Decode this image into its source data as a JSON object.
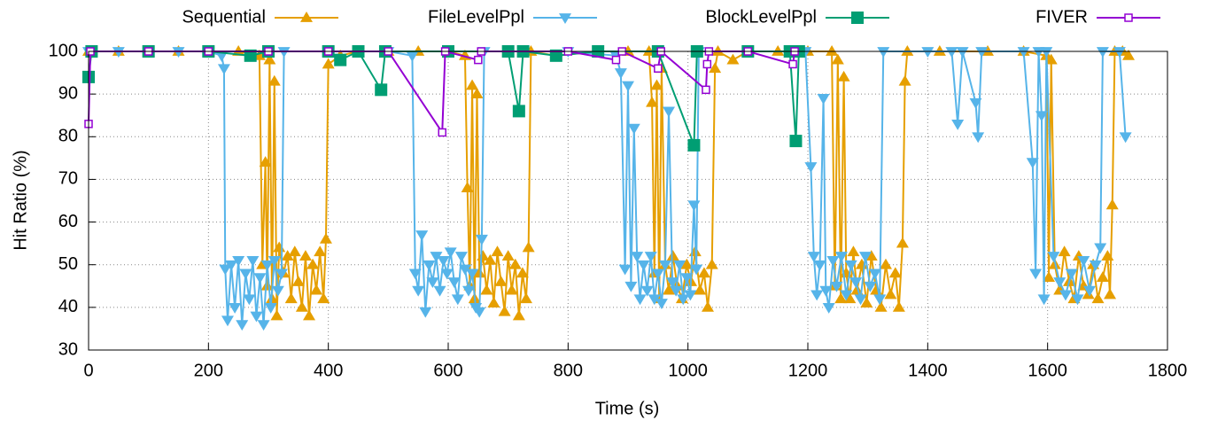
{
  "chart_data": {
    "type": "line",
    "xlabel": "Time (s)",
    "ylabel": "Hit Ratio (%)",
    "xlim": [
      0,
      1800
    ],
    "ylim": [
      30,
      100
    ],
    "xticks": [
      0,
      200,
      400,
      600,
      800,
      1000,
      1200,
      1400,
      1600,
      1800
    ],
    "yticks": [
      30,
      40,
      50,
      60,
      70,
      80,
      90,
      100
    ],
    "grid": true,
    "legend": "top",
    "series": [
      {
        "name": "Sequential",
        "color": "#E69F00",
        "marker": "triangle-up",
        "x": [
          0,
          50,
          100,
          150,
          200,
          250,
          285,
          290,
          295,
          298,
          302,
          306,
          310,
          314,
          318,
          325,
          332,
          338,
          344,
          350,
          356,
          362,
          368,
          374,
          380,
          386,
          392,
          396,
          400,
          420,
          450,
          500,
          550,
          600,
          628,
          632,
          636,
          640,
          644,
          648,
          652,
          658,
          664,
          670,
          676,
          682,
          688,
          694,
          700,
          706,
          712,
          718,
          724,
          730,
          734,
          738,
          780,
          850,
          900,
          935,
          940,
          944,
          948,
          952,
          956,
          962,
          968,
          975,
          982,
          990,
          998,
          1005,
          1012,
          1020,
          1027,
          1033,
          1040,
          1045,
          1050,
          1075,
          1100,
          1150,
          1200,
          1240,
          1245,
          1250,
          1255,
          1260,
          1264,
          1270,
          1276,
          1282,
          1290,
          1298,
          1306,
          1314,
          1322,
          1330,
          1338,
          1346,
          1352,
          1358,
          1362,
          1366,
          1420,
          1500,
          1560,
          1598,
          1602,
          1606,
          1612,
          1620,
          1628,
          1636,
          1644,
          1652,
          1660,
          1668,
          1676,
          1684,
          1692,
          1700,
          1704,
          1708,
          1712,
          1725,
          1735
        ],
        "values": [
          100,
          100,
          100,
          100,
          100,
          100,
          99,
          50,
          74,
          45,
          98,
          42,
          93,
          38,
          54,
          48,
          52,
          42,
          53,
          46,
          40,
          52,
          38,
          50,
          44,
          53,
          42,
          56,
          97,
          99,
          100,
          100,
          100,
          100,
          99,
          68,
          45,
          92,
          42,
          90,
          48,
          52,
          44,
          51,
          41,
          53,
          46,
          39,
          52,
          44,
          50,
          38,
          48,
          42,
          54,
          100,
          99,
          100,
          100,
          100,
          88,
          48,
          92,
          42,
          96,
          50,
          44,
          52,
          45,
          42,
          50,
          46,
          53,
          44,
          48,
          40,
          50,
          96,
          100,
          98,
          100,
          100,
          100,
          100,
          45,
          98,
          42,
          94,
          48,
          42,
          53,
          44,
          50,
          41,
          52,
          44,
          40,
          50,
          43,
          48,
          40,
          55,
          93,
          100,
          100,
          100,
          100,
          99,
          47,
          98,
          50,
          44,
          53,
          46,
          42,
          52,
          45,
          43,
          50,
          42,
          47,
          52,
          43,
          64,
          100,
          100,
          99
        ]
      },
      {
        "name": "FileLevelPpl",
        "color": "#56B4E9",
        "marker": "triangle-down",
        "x": [
          0,
          50,
          100,
          150,
          200,
          222,
          226,
          228,
          232,
          238,
          244,
          250,
          256,
          262,
          268,
          274,
          280,
          286,
          292,
          298,
          304,
          310,
          316,
          322,
          326,
          400,
          500,
          540,
          545,
          550,
          556,
          562,
          568,
          574,
          580,
          586,
          592,
          598,
          604,
          610,
          616,
          622,
          628,
          634,
          640,
          646,
          652,
          656,
          660,
          700,
          800,
          880,
          888,
          895,
          900,
          905,
          910,
          915,
          920,
          926,
          932,
          938,
          944,
          950,
          956,
          962,
          968,
          974,
          980,
          986,
          992,
          998,
          1004,
          1010,
          1014,
          1018,
          1100,
          1180,
          1196,
          1205,
          1210,
          1215,
          1220,
          1226,
          1230,
          1235,
          1242,
          1248,
          1256,
          1264,
          1272,
          1280,
          1288,
          1296,
          1304,
          1312,
          1320,
          1326,
          1400,
          1440,
          1450,
          1458,
          1480,
          1484,
          1490,
          1560,
          1575,
          1580,
          1585,
          1590,
          1594,
          1598,
          1610,
          1620,
          1630,
          1640,
          1650,
          1660,
          1670,
          1680,
          1688,
          1692,
          1720,
          1730
        ],
        "values": [
          100,
          100,
          100,
          100,
          100,
          99,
          96,
          49,
          37,
          50,
          40,
          51,
          36,
          48,
          42,
          51,
          38,
          47,
          36,
          50,
          40,
          51,
          44,
          48,
          100,
          100,
          100,
          99,
          48,
          44,
          57,
          39,
          50,
          46,
          52,
          44,
          51,
          48,
          53,
          46,
          42,
          52,
          49,
          44,
          48,
          40,
          39,
          56,
          100,
          100,
          100,
          99,
          95,
          49,
          92,
          45,
          82,
          52,
          42,
          50,
          44,
          52,
          42,
          48,
          41,
          50,
          86,
          46,
          44,
          50,
          42,
          47,
          43,
          64,
          49,
          100,
          100,
          100,
          100,
          73,
          52,
          43,
          50,
          89,
          44,
          40,
          51,
          45,
          52,
          43,
          50,
          46,
          42,
          52,
          45,
          48,
          42,
          100,
          100,
          100,
          83,
          100,
          88,
          80,
          100,
          100,
          74,
          48,
          100,
          85,
          42,
          100,
          52,
          46,
          43,
          48,
          42,
          51,
          44,
          50,
          54,
          100,
          100,
          80
        ]
      },
      {
        "name": "BlockLevelPpl",
        "color": "#009E73",
        "marker": "square",
        "x": [
          0,
          5,
          100,
          200,
          270,
          300,
          400,
          420,
          450,
          488,
          495,
          600,
          700,
          718,
          725,
          780,
          850,
          950,
          1010,
          1015,
          1100,
          1170,
          1180,
          1185
        ],
        "values": [
          94,
          100,
          100,
          100,
          99,
          100,
          100,
          98,
          100,
          91,
          100,
          100,
          100,
          86,
          100,
          99,
          100,
          100,
          78,
          100,
          100,
          100,
          79,
          100
        ]
      },
      {
        "name": "FIVER",
        "color": "#9400D3",
        "marker": "open-square",
        "x": [
          0,
          3,
          100,
          200,
          300,
          400,
          500,
          590,
          595,
          650,
          655,
          800,
          880,
          890,
          950,
          955,
          1030,
          1032,
          1035,
          1100,
          1175,
          1178
        ],
        "values": [
          83,
          100,
          100,
          100,
          100,
          100,
          100,
          81,
          100,
          98,
          100,
          100,
          98,
          100,
          96,
          100,
          91,
          97,
          100,
          100,
          97,
          100
        ]
      }
    ]
  }
}
